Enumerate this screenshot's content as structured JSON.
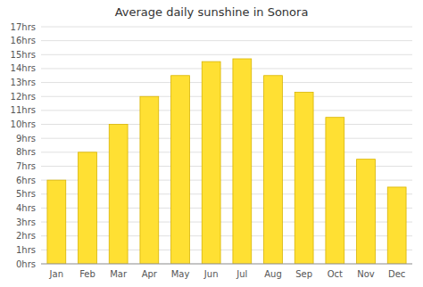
{
  "chart_data": {
    "type": "bar",
    "title": "Average daily sunshine in Sonora",
    "categories": [
      "Jan",
      "Feb",
      "Mar",
      "Apr",
      "May",
      "Jun",
      "Jul",
      "Aug",
      "Sep",
      "Oct",
      "Nov",
      "Dec"
    ],
    "values": [
      6.0,
      8.0,
      10.0,
      12.0,
      13.5,
      14.5,
      14.7,
      13.5,
      12.3,
      10.5,
      7.5,
      5.5
    ],
    "color": "#FFE033",
    "ylim": [
      0,
      17
    ],
    "yticks": [
      {
        "value": 0,
        "label": "0hrs"
      },
      {
        "value": 1,
        "label": "1hrs"
      },
      {
        "value": 2,
        "label": "2hrs"
      },
      {
        "value": 3,
        "label": "3hrs"
      },
      {
        "value": 4,
        "label": "4hrs"
      },
      {
        "value": 5,
        "label": "5hrs"
      },
      {
        "value": 6,
        "label": "6hrs"
      },
      {
        "value": 7,
        "label": "7hrs"
      },
      {
        "value": 8,
        "label": "8hrs"
      },
      {
        "value": 9,
        "label": "9hrs"
      },
      {
        "value": 10,
        "label": "10hrs"
      },
      {
        "value": 11,
        "label": "11hrs"
      },
      {
        "value": 12,
        "label": "12hrs"
      },
      {
        "value": 13,
        "label": "13hrs"
      },
      {
        "value": 14,
        "label": "14hrs"
      },
      {
        "value": 15,
        "label": "15hrs"
      },
      {
        "value": 16,
        "label": "16hrs"
      },
      {
        "value": 17,
        "label": "17hrs"
      }
    ],
    "grid": true
  }
}
